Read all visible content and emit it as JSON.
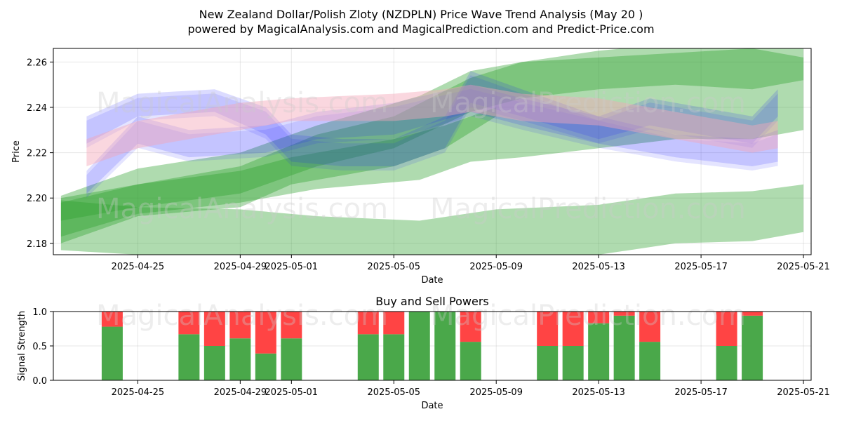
{
  "title_line1": "New Zealand Dollar/Polish Zloty (NZDPLN) Price Wave Trend Analysis (May 20 )",
  "title_line2": "powered by MagicalAnalysis.com and MagicalPrediction.com and Predict-Price.com",
  "watermarks": [
    "MagicalAnalysis.com",
    "MagicalPrediction.com"
  ],
  "colors": {
    "green": "#2ca02c",
    "blue": "#1f1fff",
    "pink": "#f4a6b8",
    "sell": "#ff4444",
    "buy": "#4aa84a"
  },
  "chart_data": [
    {
      "type": "area",
      "xlabel": "Date",
      "ylabel": "Price",
      "x_ticks": [
        "2025-04-25",
        "2025-04-29",
        "2025-05-01",
        "2025-05-05",
        "2025-05-09",
        "2025-05-13",
        "2025-05-17",
        "2025-05-21"
      ],
      "y_ticks": [
        "2.18",
        "2.20",
        "2.22",
        "2.24",
        "2.26"
      ],
      "xlim": [
        "2025-04-22",
        "2025-05-21"
      ],
      "ylim": [
        2.175,
        2.266
      ],
      "grid": true,
      "bands": [
        {
          "color": "green",
          "x": [
            "2025-04-22",
            "2025-04-25",
            "2025-04-29",
            "2025-05-02",
            "2025-05-06",
            "2025-05-09",
            "2025-05-13",
            "2025-05-16",
            "2025-05-19",
            "2025-05-21"
          ],
          "upper": [
            2.199,
            2.196,
            2.195,
            2.192,
            2.19,
            2.195,
            2.197,
            2.202,
            2.203,
            2.206
          ],
          "lower": [
            2.177,
            2.175,
            2.173,
            2.171,
            2.169,
            2.17,
            2.175,
            2.18,
            2.181,
            2.185
          ]
        },
        {
          "color": "green",
          "x": [
            "2025-04-22",
            "2025-04-25",
            "2025-04-29",
            "2025-05-02",
            "2025-05-06",
            "2025-05-08",
            "2025-05-10",
            "2025-05-13",
            "2025-05-16",
            "2025-05-19",
            "2025-05-21"
          ],
          "upper": [
            2.201,
            2.213,
            2.22,
            2.232,
            2.245,
            2.256,
            2.26,
            2.265,
            2.268,
            2.27,
            2.266
          ],
          "lower": [
            2.183,
            2.193,
            2.198,
            2.204,
            2.208,
            2.216,
            2.218,
            2.222,
            2.226,
            2.226,
            2.23
          ]
        },
        {
          "color": "green",
          "x": [
            "2025-04-22",
            "2025-04-25",
            "2025-04-29",
            "2025-05-02",
            "2025-05-05",
            "2025-05-08",
            "2025-05-10",
            "2025-05-13",
            "2025-05-16",
            "2025-05-19",
            "2025-05-21"
          ],
          "upper": [
            2.198,
            2.206,
            2.214,
            2.228,
            2.236,
            2.253,
            2.26,
            2.262,
            2.264,
            2.266,
            2.262
          ],
          "lower": [
            2.19,
            2.196,
            2.202,
            2.214,
            2.222,
            2.238,
            2.244,
            2.248,
            2.25,
            2.248,
            2.252
          ]
        },
        {
          "color": "green",
          "x": [
            "2025-04-22",
            "2025-04-25",
            "2025-04-29",
            "2025-05-01",
            "2025-05-05",
            "2025-05-07",
            "2025-05-09"
          ],
          "upper": [
            2.2,
            2.206,
            2.212,
            2.218,
            2.226,
            2.232,
            2.24
          ],
          "lower": [
            2.18,
            2.192,
            2.196,
            2.206,
            2.214,
            2.222,
            2.236
          ]
        },
        {
          "color": "blue",
          "x": [
            "2025-04-23",
            "2025-04-25",
            "2025-04-28",
            "2025-04-30",
            "2025-05-01",
            "2025-05-03",
            "2025-05-05",
            "2025-05-07",
            "2025-05-08",
            "2025-05-10",
            "2025-05-13",
            "2025-05-15",
            "2025-05-17",
            "2025-05-19",
            "2025-05-20"
          ],
          "upper": [
            2.236,
            2.246,
            2.248,
            2.24,
            2.228,
            2.226,
            2.226,
            2.236,
            2.256,
            2.248,
            2.236,
            2.244,
            2.24,
            2.236,
            2.248
          ],
          "lower": [
            2.224,
            2.236,
            2.238,
            2.228,
            2.216,
            2.214,
            2.214,
            2.222,
            2.242,
            2.236,
            2.226,
            2.232,
            2.228,
            2.224,
            2.236
          ]
        },
        {
          "color": "blue",
          "x": [
            "2025-04-23",
            "2025-04-25",
            "2025-04-27",
            "2025-04-30",
            "2025-05-02",
            "2025-05-05",
            "2025-05-08",
            "2025-05-10",
            "2025-05-13",
            "2025-05-16",
            "2025-05-19",
            "2025-05-20"
          ],
          "upper": [
            2.212,
            2.236,
            2.23,
            2.232,
            2.238,
            2.242,
            2.25,
            2.244,
            2.236,
            2.228,
            2.226,
            2.23
          ],
          "lower": [
            2.202,
            2.224,
            2.218,
            2.22,
            2.226,
            2.228,
            2.238,
            2.232,
            2.224,
            2.218,
            2.214,
            2.216
          ]
        },
        {
          "color": "pink",
          "x": [
            "2025-04-23",
            "2025-04-25",
            "2025-04-29",
            "2025-05-01",
            "2025-05-05",
            "2025-05-07",
            "2025-05-08",
            "2025-05-10",
            "2025-05-13",
            "2025-05-16",
            "2025-05-19",
            "2025-05-20"
          ],
          "upper": [
            2.226,
            2.234,
            2.242,
            2.244,
            2.246,
            2.248,
            2.25,
            2.246,
            2.244,
            2.238,
            2.232,
            2.234
          ],
          "lower": [
            2.214,
            2.222,
            2.23,
            2.234,
            2.234,
            2.236,
            2.238,
            2.234,
            2.232,
            2.226,
            2.22,
            2.222
          ]
        }
      ]
    },
    {
      "type": "bar",
      "title": "Buy and Sell Powers",
      "xlabel": "Date",
      "ylabel": "Signal Strength",
      "x_ticks": [
        "2025-04-25",
        "2025-04-29",
        "2025-05-01",
        "2025-05-05",
        "2025-05-09",
        "2025-05-13",
        "2025-05-17",
        "2025-05-21"
      ],
      "y_ticks": [
        "0.0",
        "0.5",
        "1.0"
      ],
      "ylim": [
        0,
        1
      ],
      "bars": [
        {
          "date": "2025-04-24",
          "buy": 0.78
        },
        {
          "date": "2025-04-27",
          "buy": 0.67
        },
        {
          "date": "2025-04-28",
          "buy": 0.5
        },
        {
          "date": "2025-04-29",
          "buy": 0.61
        },
        {
          "date": "2025-04-30",
          "buy": 0.39
        },
        {
          "date": "2025-05-01",
          "buy": 0.61
        },
        {
          "date": "2025-05-04",
          "buy": 0.67
        },
        {
          "date": "2025-05-05",
          "buy": 0.67
        },
        {
          "date": "2025-05-06",
          "buy": 1.0
        },
        {
          "date": "2025-05-07",
          "buy": 1.0
        },
        {
          "date": "2025-05-08",
          "buy": 0.56
        },
        {
          "date": "2025-05-11",
          "buy": 0.5
        },
        {
          "date": "2025-05-12",
          "buy": 0.5
        },
        {
          "date": "2025-05-13",
          "buy": 0.83
        },
        {
          "date": "2025-05-14",
          "buy": 0.94
        },
        {
          "date": "2025-05-15",
          "buy": 0.56
        },
        {
          "date": "2025-05-18",
          "buy": 0.5
        },
        {
          "date": "2025-05-19",
          "buy": 0.94
        }
      ]
    }
  ]
}
